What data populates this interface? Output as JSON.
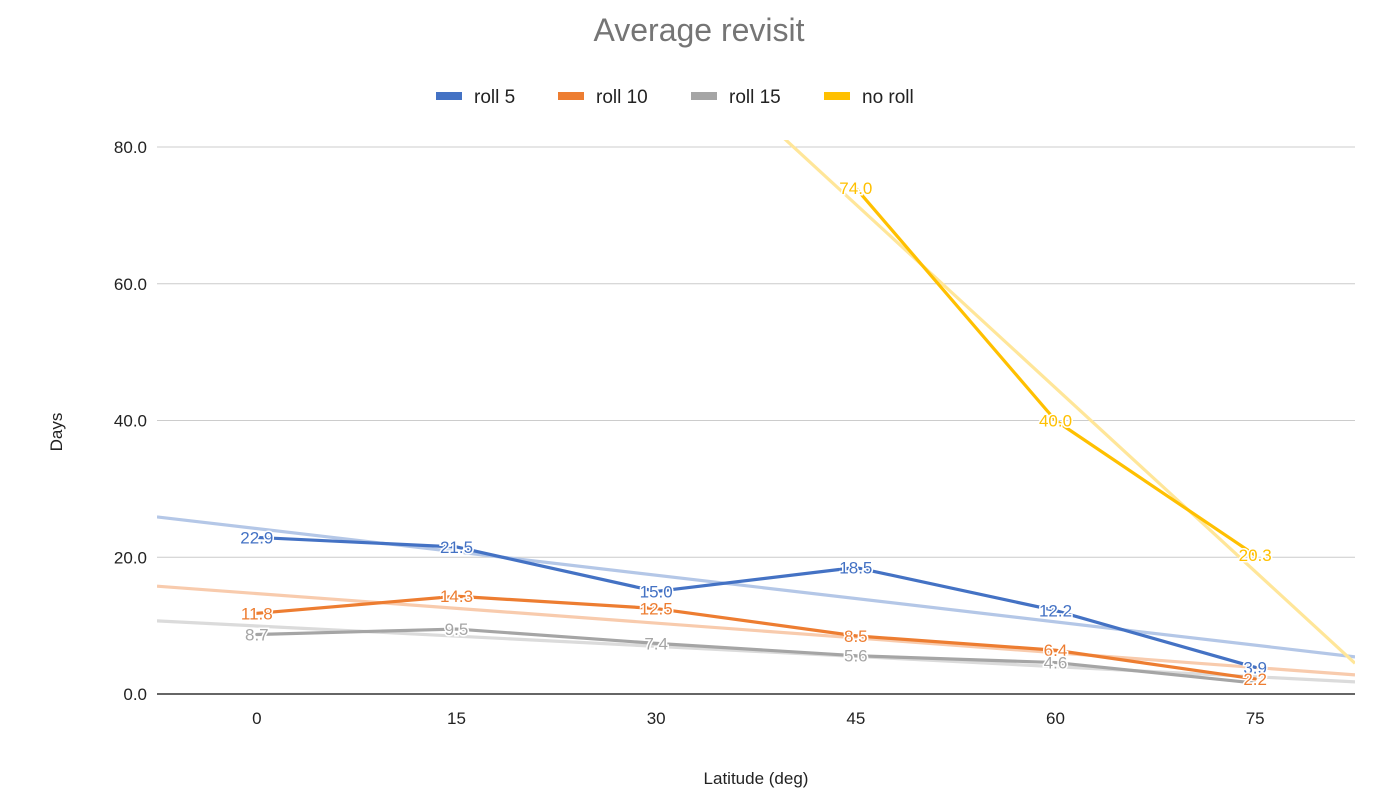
{
  "chart_data": {
    "type": "line",
    "title": "Average revisit",
    "xlabel": "Latitude (deg)",
    "ylabel": "Days",
    "categories": [
      "0",
      "15",
      "30",
      "45",
      "60",
      "75"
    ],
    "ylim": [
      0,
      80
    ],
    "yticks": [
      "0.0",
      "20.0",
      "40.0",
      "60.0",
      "80.0"
    ],
    "grid": true,
    "legend_position": "top",
    "trendlines": true,
    "series": [
      {
        "name": "roll 5",
        "color": "#4472c4",
        "trend_color": "#b4c7e7",
        "values": [
          22.9,
          21.5,
          15.0,
          18.5,
          12.2,
          3.9
        ],
        "labels": [
          "22.9",
          "21.5",
          "15.0",
          "18.5",
          "12.2",
          "3.9"
        ]
      },
      {
        "name": "roll 10",
        "color": "#ed7d31",
        "trend_color": "#f8cbad",
        "values": [
          11.8,
          14.3,
          12.5,
          8.5,
          6.4,
          2.2
        ],
        "labels": [
          "11.8",
          "14.3",
          "12.5",
          "8.5",
          "6.4",
          "2.2"
        ]
      },
      {
        "name": "roll 15",
        "color": "#a5a5a5",
        "trend_color": "#dbdbdb",
        "values": [
          8.7,
          9.5,
          7.4,
          5.6,
          4.6,
          1.6
        ],
        "labels": [
          "8.7",
          "9.5",
          "7.4",
          "5.6",
          "4.6",
          ""
        ]
      },
      {
        "name": "no roll",
        "color": "#ffc000",
        "trend_color": "#ffe699",
        "values": [
          null,
          null,
          null,
          74.0,
          40.0,
          20.3
        ],
        "labels": [
          "",
          "",
          "",
          "74.0",
          "40.0",
          "20.3"
        ]
      }
    ]
  }
}
